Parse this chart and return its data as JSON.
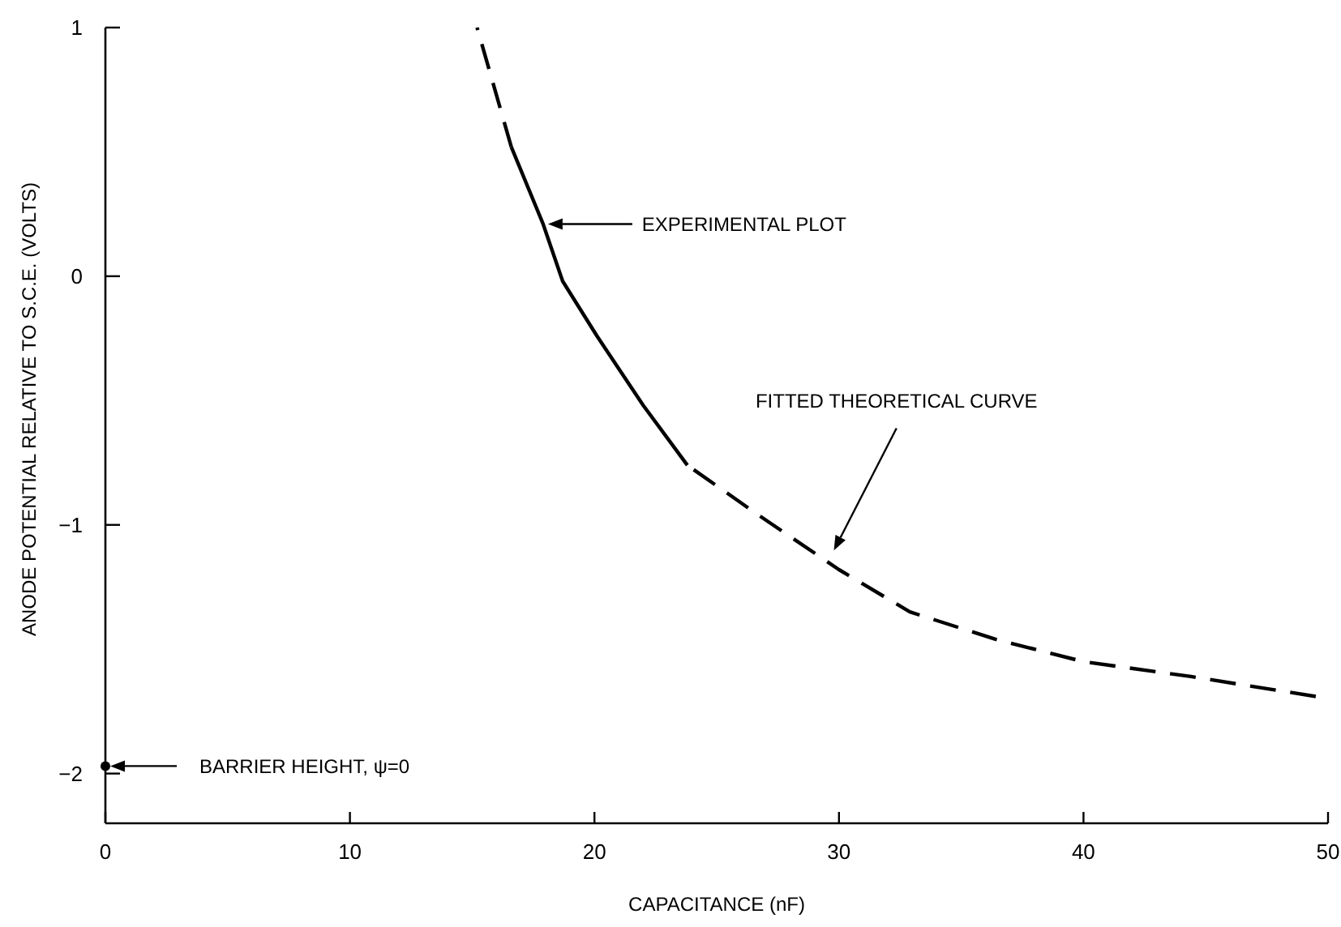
{
  "chart_data": {
    "type": "line",
    "xlabel": "CAPACITANCE (nF)",
    "ylabel": "ANODE POTENTIAL RELATIVE TO S.C.E. (VOLTS)",
    "xlim": [
      0,
      50
    ],
    "xticks": [
      0,
      10,
      20,
      30,
      40,
      50
    ],
    "ylim": [
      -2.2,
      1
    ],
    "yticks": [
      -2,
      -1,
      0,
      1
    ],
    "grid": false,
    "series": [
      {
        "line_style": "dashed",
        "color": "#000000",
        "x": [
          15.2,
          16.6,
          20,
          23.8,
          26.7,
          30,
          32.9,
          36.4,
          40,
          44.4,
          49.5
        ],
        "values": [
          1.0,
          0.52,
          null,
          -0.76,
          -0.96,
          -1.18,
          -1.35,
          -1.46,
          -1.55,
          -1.61,
          -1.69
        ]
      },
      {
        "line_style": "solid",
        "color": "#000000",
        "x": [
          16.6,
          17.9,
          18.7,
          20.1,
          22,
          23.8
        ],
        "values": [
          0.52,
          0.21,
          -0.02,
          -0.24,
          -0.52,
          -0.76
        ]
      },
      {
        "type": "scatter",
        "marker": "circle",
        "color": "#000000",
        "x": [
          0
        ],
        "values": [
          -1.97
        ]
      }
    ],
    "annotations": [
      "EXPERIMENTAL PLOT",
      "FITTED THEORETICAL CURVE",
      "BARRIER HEIGHT, ψ=0"
    ]
  }
}
